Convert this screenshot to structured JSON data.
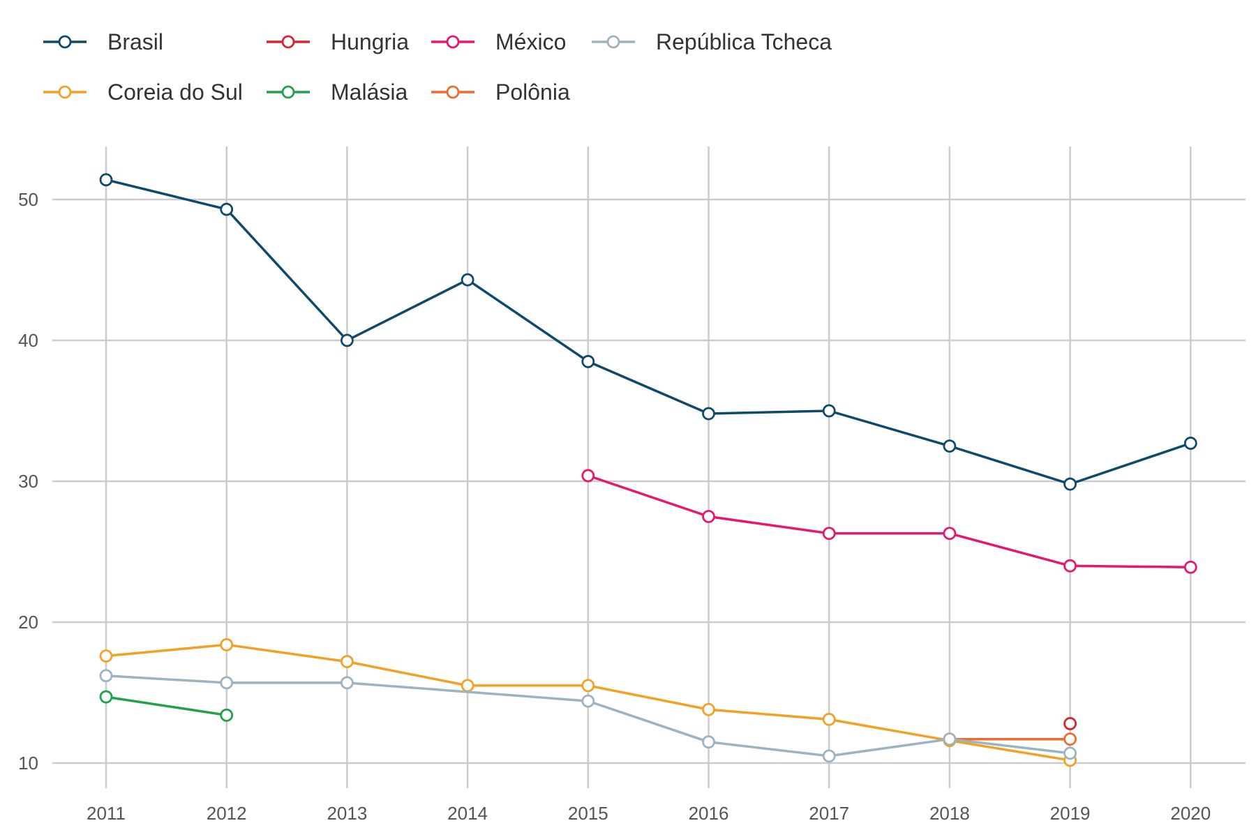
{
  "chart_data": {
    "type": "line",
    "title": "",
    "xlabel": "",
    "ylabel": "",
    "x": [
      2011,
      2012,
      2013,
      2014,
      2015,
      2016,
      2017,
      2018,
      2019,
      2020
    ],
    "xlim": [
      2010.6,
      2020.4
    ],
    "ylim": [
      8.3,
      54
    ],
    "x_ticks": [
      "2011",
      "2012",
      "2013",
      "2014",
      "2015",
      "2016",
      "2017",
      "2018",
      "2019",
      "2020"
    ],
    "y_ticks": [
      "10",
      "20",
      "30",
      "40",
      "50"
    ],
    "grid": true,
    "legend_position": "top-left",
    "series": [
      {
        "name": "Brasil",
        "color": "#0d4a6b",
        "values": [
          51.4,
          49.3,
          40.0,
          44.3,
          38.5,
          34.8,
          35.0,
          32.5,
          29.8,
          32.7
        ]
      },
      {
        "name": "Coreia do Sul",
        "color": "#f4a024",
        "values": [
          17.6,
          18.4,
          17.2,
          15.5,
          15.5,
          13.8,
          13.1,
          11.6,
          10.2,
          null
        ]
      },
      {
        "name": "Hungria",
        "color": "#d62631",
        "values": [
          null,
          null,
          null,
          null,
          null,
          null,
          null,
          null,
          12.8,
          null
        ]
      },
      {
        "name": "Malásia",
        "color": "#21a24a",
        "values": [
          14.7,
          13.4,
          null,
          null,
          null,
          null,
          null,
          null,
          null,
          null
        ]
      },
      {
        "name": "México",
        "color": "#e8166f",
        "values": [
          null,
          null,
          null,
          null,
          30.4,
          27.5,
          26.3,
          26.3,
          24.0,
          23.9
        ]
      },
      {
        "name": "Polônia",
        "color": "#ed6b2e",
        "values": [
          null,
          null,
          null,
          null,
          null,
          null,
          null,
          11.7,
          11.7,
          null
        ]
      },
      {
        "name": "República Tcheca",
        "color": "#9cb3c2",
        "values": [
          16.2,
          15.7,
          15.7,
          null,
          14.4,
          11.5,
          10.5,
          11.7,
          10.7,
          null
        ]
      }
    ]
  }
}
